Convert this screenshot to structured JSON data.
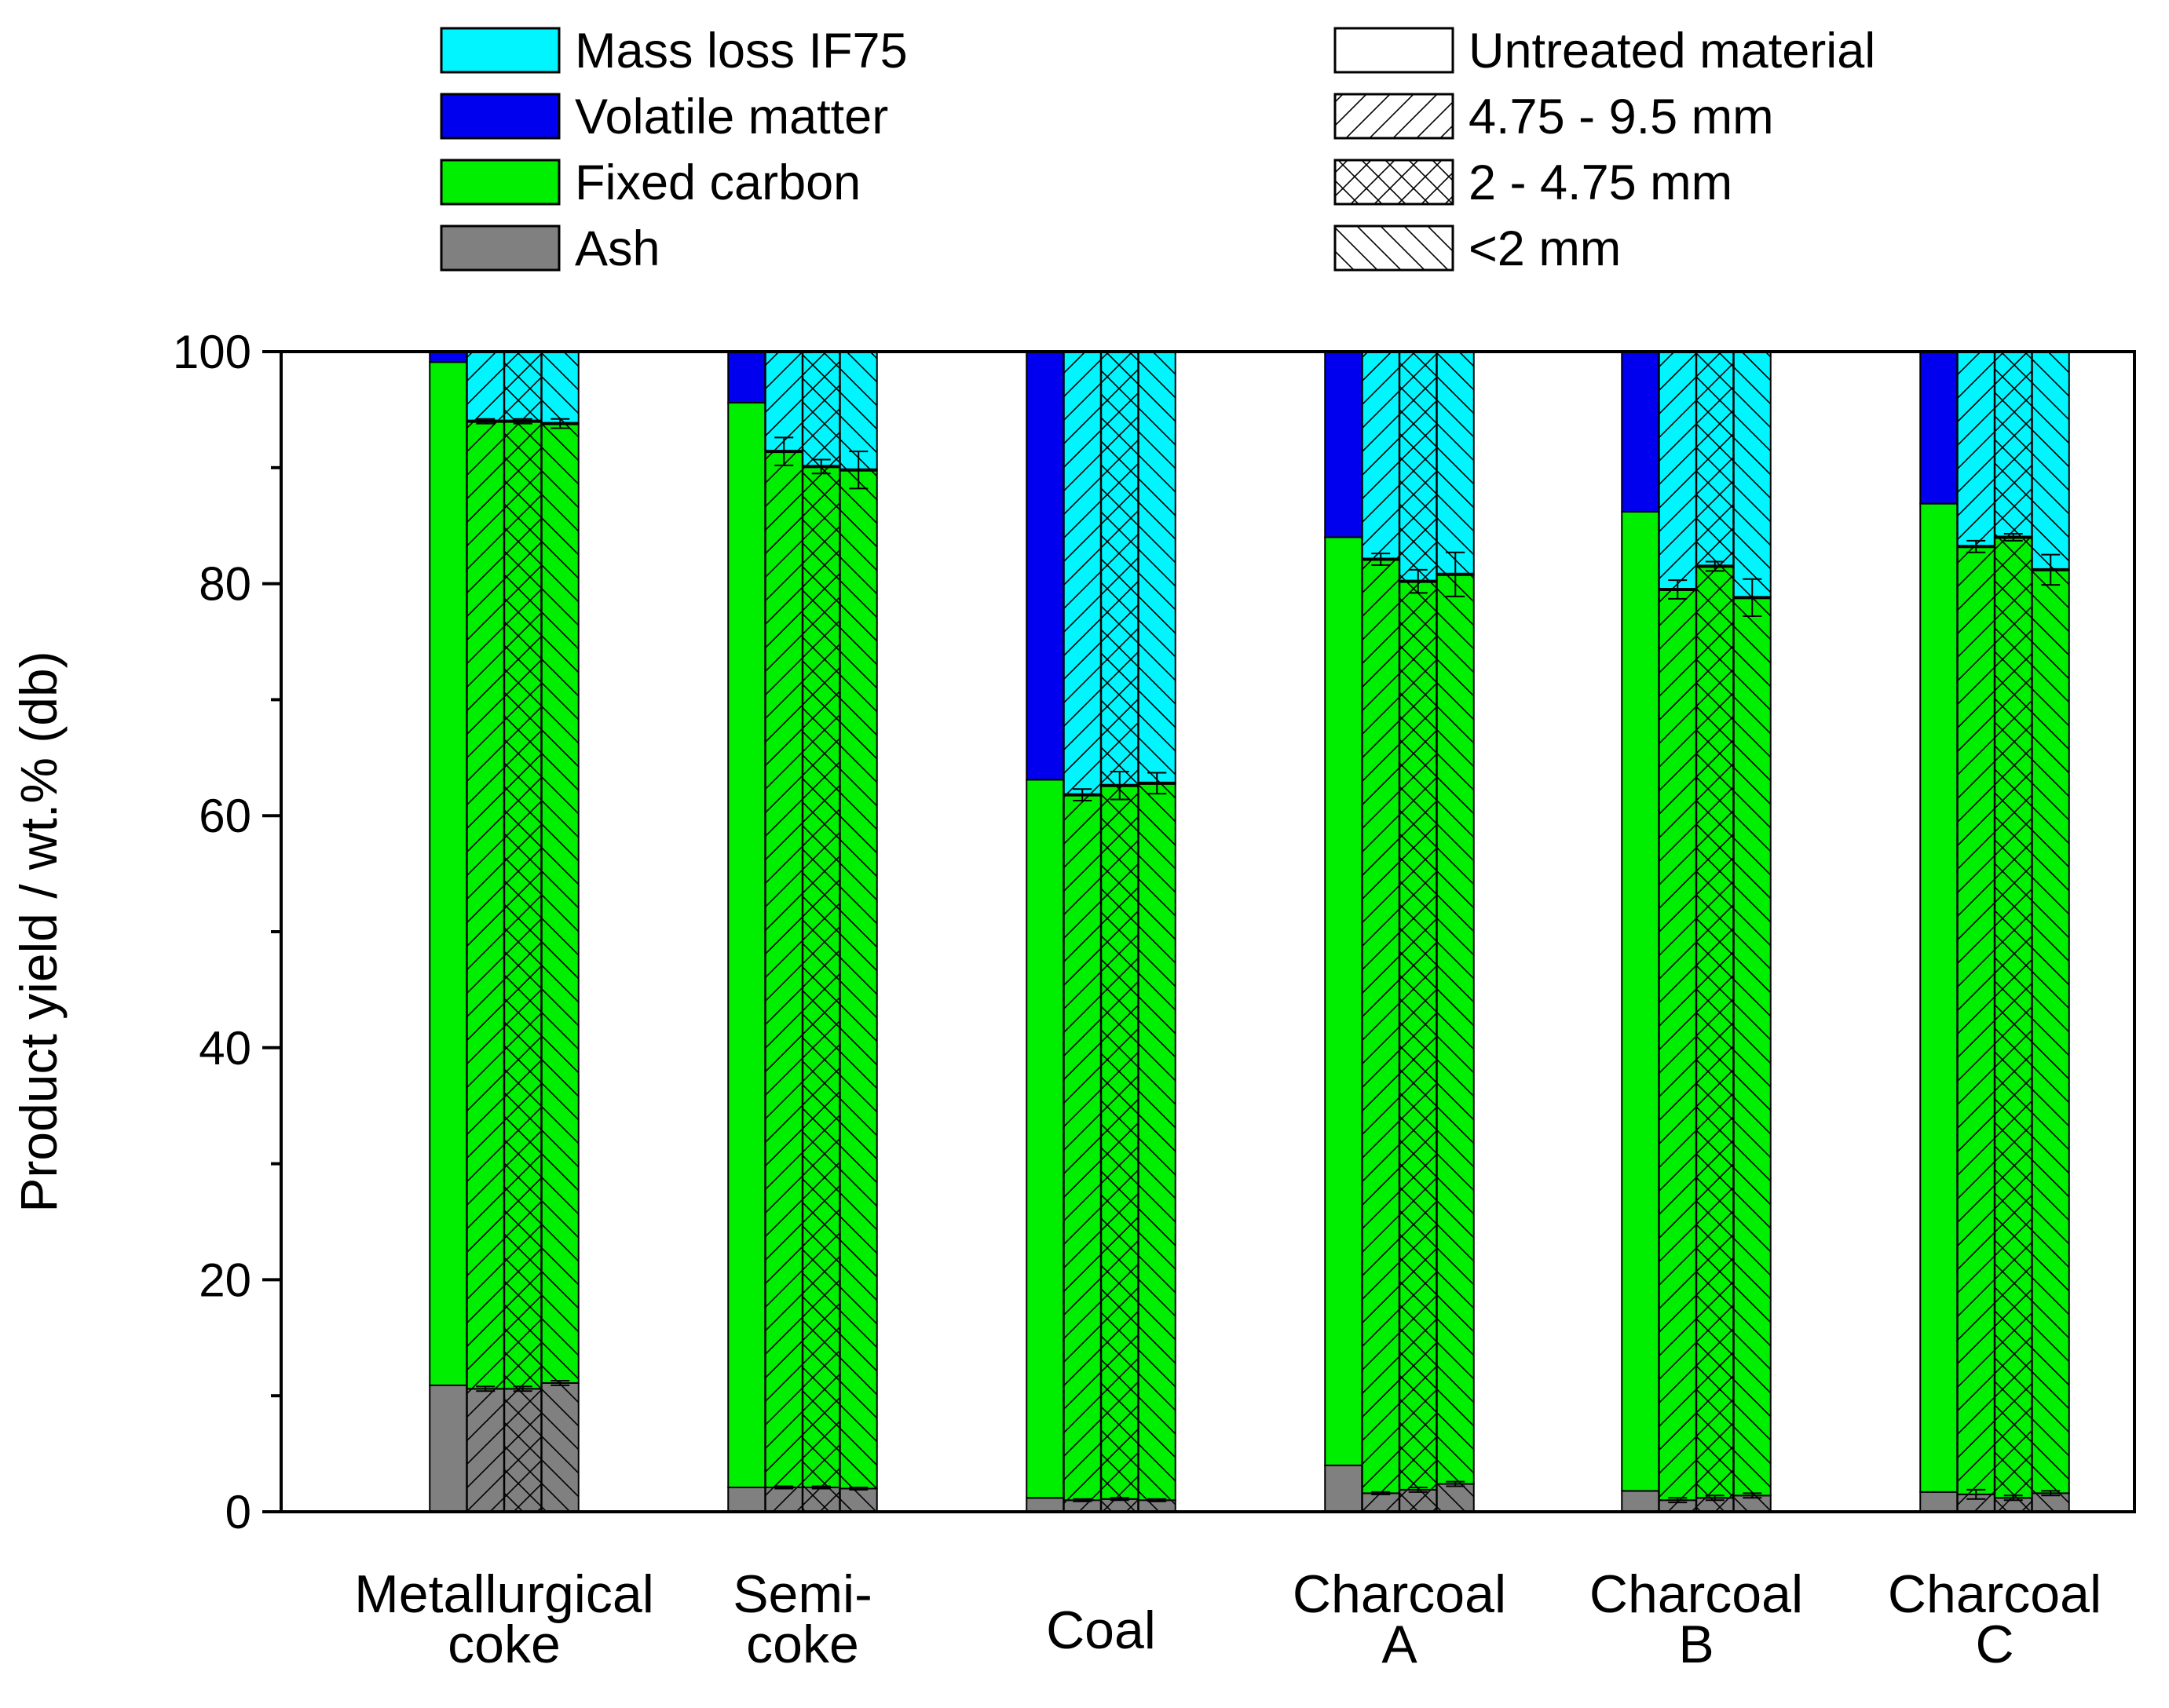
{
  "chart_data": {
    "type": "bar",
    "stacked": true,
    "ylabel": "Product yield / wt.% (db)",
    "xlabel": "",
    "ylim": [
      0,
      100
    ],
    "yticks": [
      0,
      20,
      40,
      60,
      80,
      100
    ],
    "grid": false,
    "legend_position": "top",
    "categories": [
      {
        "lines": [
          "Metallurgical",
          "coke"
        ]
      },
      {
        "lines": [
          "Semi-",
          "coke"
        ]
      },
      {
        "lines": [
          "Coal"
        ]
      },
      {
        "lines": [
          "Charcoal",
          "A"
        ]
      },
      {
        "lines": [
          "Charcoal",
          "B"
        ]
      },
      {
        "lines": [
          "Charcoal",
          "C"
        ]
      }
    ],
    "components": [
      {
        "key": "ash",
        "name": "Ash",
        "color": "#808080"
      },
      {
        "key": "fixed",
        "name": "Fixed carbon",
        "color": "#00EE00"
      },
      {
        "key": "volatile",
        "name": "Volatile matter",
        "color": "#0000EE"
      },
      {
        "key": "massloss",
        "name": "Mass loss IF75",
        "color": "#00F5FF"
      }
    ],
    "size_fractions": [
      {
        "name": "Untreated material",
        "pattern": "none"
      },
      {
        "name": "4.75 - 9.5 mm",
        "pattern": "forward"
      },
      {
        "name": "2 - 4.75 mm",
        "pattern": "cross"
      },
      {
        "name": "<2 mm",
        "pattern": "backward"
      }
    ],
    "series": [
      {
        "category": "Metallurgical coke",
        "bars": [
          {
            "fraction": "Untreated material",
            "ash": 10.9,
            "fixed_top": 99.1,
            "volatile_top": 100
          },
          {
            "fraction": "4.75 - 9.5 mm",
            "ash": 10.6,
            "ash_err": 0.2,
            "fixed_top": 94.0,
            "fixed_err": 0.2
          },
          {
            "fraction": "2 - 4.75 mm",
            "ash": 10.6,
            "ash_err": 0.2,
            "fixed_top": 94.0,
            "fixed_err": 0.2
          },
          {
            "fraction": "<2 mm",
            "ash": 11.1,
            "ash_err": 0.2,
            "fixed_top": 93.8,
            "fixed_err": 0.4
          }
        ]
      },
      {
        "category": "Semi-coke",
        "bars": [
          {
            "fraction": "Untreated material",
            "ash": 2.1,
            "fixed_top": 95.6,
            "volatile_top": 100
          },
          {
            "fraction": "4.75 - 9.5 mm",
            "ash": 2.1,
            "ash_err": 0.1,
            "fixed_top": 91.4,
            "fixed_err": 1.2
          },
          {
            "fraction": "2 - 4.75 mm",
            "ash": 2.1,
            "ash_err": 0.1,
            "fixed_top": 90.1,
            "fixed_err": 0.6
          },
          {
            "fraction": "<2 mm",
            "ash": 2.0,
            "ash_err": 0.1,
            "fixed_top": 89.8,
            "fixed_err": 1.6
          }
        ]
      },
      {
        "category": "Coal",
        "bars": [
          {
            "fraction": "Untreated material",
            "ash": 1.2,
            "fixed_top": 63.1,
            "volatile_top": 100
          },
          {
            "fraction": "4.75 - 9.5 mm",
            "ash": 1.0,
            "ash_err": 0.1,
            "fixed_top": 61.8,
            "fixed_err": 0.5
          },
          {
            "fraction": "2 - 4.75 mm",
            "ash": 1.1,
            "ash_err": 0.1,
            "fixed_top": 62.6,
            "fixed_err": 1.2
          },
          {
            "fraction": "<2 mm",
            "ash": 1.0,
            "ash_err": 0.1,
            "fixed_top": 62.8,
            "fixed_err": 0.9
          }
        ]
      },
      {
        "category": "Charcoal A",
        "bars": [
          {
            "fraction": "Untreated material",
            "ash": 4.0,
            "fixed_top": 84.0,
            "volatile_top": 100
          },
          {
            "fraction": "4.75 - 9.5 mm",
            "ash": 1.6,
            "ash_err": 0.1,
            "fixed_top": 82.1,
            "fixed_err": 0.5
          },
          {
            "fraction": "2 - 4.75 mm",
            "ash": 1.9,
            "ash_err": 0.2,
            "fixed_top": 80.2,
            "fixed_err": 1.0
          },
          {
            "fraction": "<2 mm",
            "ash": 2.4,
            "ash_err": 0.2,
            "fixed_top": 80.8,
            "fixed_err": 1.9
          }
        ]
      },
      {
        "category": "Charcoal B",
        "bars": [
          {
            "fraction": "Untreated material",
            "ash": 1.8,
            "fixed_top": 86.2,
            "volatile_top": 100
          },
          {
            "fraction": "4.75 - 9.5 mm",
            "ash": 1.0,
            "ash_err": 0.2,
            "fixed_top": 79.5,
            "fixed_err": 0.8
          },
          {
            "fraction": "2 - 4.75 mm",
            "ash": 1.2,
            "ash_err": 0.2,
            "fixed_top": 81.5,
            "fixed_err": 0.4
          },
          {
            "fraction": "<2 mm",
            "ash": 1.4,
            "ash_err": 0.2,
            "fixed_top": 78.8,
            "fixed_err": 1.6
          }
        ]
      },
      {
        "category": "Charcoal C",
        "bars": [
          {
            "fraction": "Untreated material",
            "ash": 1.7,
            "fixed_top": 86.9,
            "volatile_top": 100
          },
          {
            "fraction": "4.75 - 9.5 mm",
            "ash": 1.5,
            "ash_err": 0.4,
            "fixed_top": 83.2,
            "fixed_err": 0.5
          },
          {
            "fraction": "2 - 4.75 mm",
            "ash": 1.2,
            "ash_err": 0.2,
            "fixed_top": 84.0,
            "fixed_err": 0.3
          },
          {
            "fraction": "<2 mm",
            "ash": 1.6,
            "ash_err": 0.2,
            "fixed_top": 81.2,
            "fixed_err": 1.3
          }
        ]
      }
    ]
  }
}
